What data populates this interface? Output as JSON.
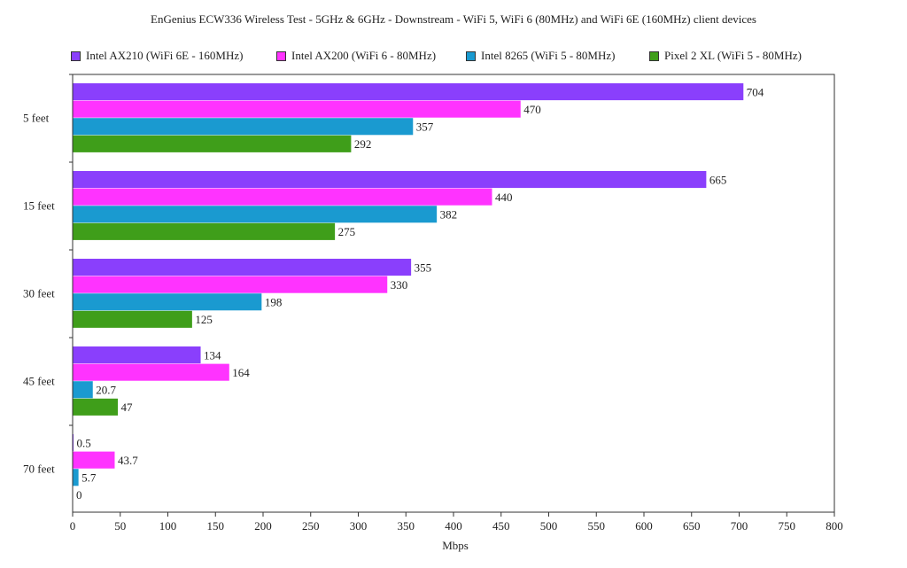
{
  "chart_data": {
    "type": "bar",
    "orientation": "horizontal",
    "title": "EnGenius ECW336 Wireless Test - 5GHz & 6GHz - Downstream - WiFi 5, WiFi 6 (80MHz) and WiFi 6E (160MHz) client devices",
    "xlabel": "Mbps",
    "ylabel": "",
    "xlim": [
      0,
      800
    ],
    "xticks": [
      0,
      50,
      100,
      150,
      200,
      250,
      300,
      350,
      400,
      450,
      500,
      550,
      600,
      650,
      700,
      750,
      800
    ],
    "grid": false,
    "legend_position": "top",
    "categories": [
      "5   feet",
      "15 feet",
      "30 feet",
      "45 feet",
      "70 feet"
    ],
    "series": [
      {
        "name": "Intel AX210 (WiFi 6E - 160MHz)",
        "color": "#8a3ffc",
        "values": [
          704,
          665,
          355,
          134,
          0.5
        ],
        "labels": [
          "704",
          "665",
          "355",
          "134",
          "0.5"
        ]
      },
      {
        "name": "Intel AX200 (WiFi 6 - 80MHz)",
        "color": "#ff33ff",
        "values": [
          470,
          440,
          330,
          164,
          43.7
        ],
        "labels": [
          "470",
          "440",
          "330",
          "164",
          "43.7"
        ]
      },
      {
        "name": "Intel 8265 (WiFi 5 - 80MHz)",
        "color": "#1a9ad0",
        "values": [
          357,
          382,
          198,
          20.7,
          5.7
        ],
        "labels": [
          "357",
          "382",
          "198",
          "20.7",
          "5.7"
        ]
      },
      {
        "name": "Pixel 2 XL (WiFi 5 - 80MHz)",
        "color": "#3f9e1a",
        "values": [
          292,
          275,
          125,
          47,
          0
        ],
        "labels": [
          "292",
          "275",
          "125",
          "47",
          "0"
        ]
      }
    ]
  }
}
